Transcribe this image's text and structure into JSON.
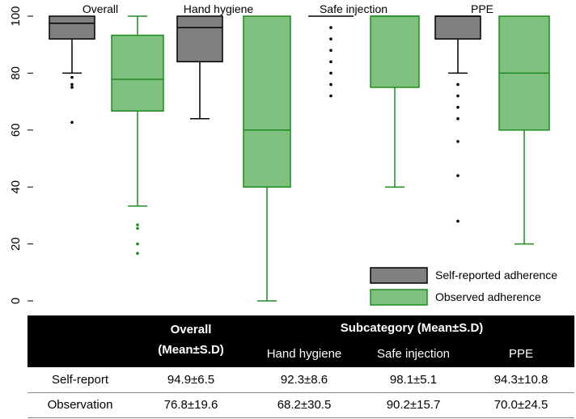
{
  "chart_data": {
    "type": "boxplot",
    "ylim": [
      0,
      100
    ],
    "yticks": [
      0,
      20,
      40,
      60,
      80,
      100
    ],
    "groups": [
      "Overall",
      "Hand hygiene",
      "Safe injection",
      "PPE"
    ],
    "series": [
      {
        "name": "Self-reported adherence",
        "color": "#808080"
      },
      {
        "name": "Observed adherence",
        "color": "#7fc27f"
      }
    ],
    "boxes": [
      {
        "group": "Overall",
        "series": "Self-reported adherence",
        "min": 80,
        "q1": 92,
        "median": 97.5,
        "q3": 100,
        "max": 100,
        "outliers": [
          78.5,
          76,
          75,
          62.7
        ]
      },
      {
        "group": "Overall",
        "series": "Observed adherence",
        "min": 33.3,
        "q1": 66.7,
        "median": 77.8,
        "q3": 93.3,
        "max": 100,
        "outliers": [
          26.7,
          25.5,
          20,
          16.7
        ]
      },
      {
        "group": "Hand hygiene",
        "series": "Self-reported adherence",
        "min": 64,
        "q1": 84,
        "median": 96,
        "q3": 100,
        "max": 100,
        "outliers": []
      },
      {
        "group": "Hand hygiene",
        "series": "Observed adherence",
        "min": 0,
        "q1": 40,
        "median": 60,
        "q3": 100,
        "max": 100,
        "outliers": []
      },
      {
        "group": "Safe injection",
        "series": "Self-reported adherence",
        "min": 100,
        "q1": 100,
        "median": 100,
        "q3": 100,
        "max": 100,
        "outliers": [
          96,
          92,
          88,
          84,
          80,
          76,
          72
        ]
      },
      {
        "group": "Safe injection",
        "series": "Observed adherence",
        "min": 40,
        "q1": 75,
        "median": 100,
        "q3": 100,
        "max": 100,
        "outliers": []
      },
      {
        "group": "PPE",
        "series": "Self-reported adherence",
        "min": 80,
        "q1": 92,
        "median": 100,
        "q3": 100,
        "max": 100,
        "outliers": [
          76,
          72,
          68,
          64,
          56,
          44,
          28
        ]
      },
      {
        "group": "PPE",
        "series": "Observed adherence",
        "min": 20,
        "q1": 60,
        "median": 80,
        "q3": 100,
        "max": 100,
        "outliers": []
      }
    ],
    "legend_position": "bottom-right"
  },
  "table": {
    "header_overall_1": "Overall",
    "header_overall_2": "(Mean±S.D)",
    "header_subcategory": "Subcategory (Mean±S.D)",
    "header_hand": "Hand hygiene",
    "header_injection": "Safe injection",
    "header_ppe": "PPE",
    "rows": [
      {
        "label": "Self-report",
        "overall": "94.9±6.5",
        "hand": "92.3±8.6",
        "injection": "98.1±5.1",
        "ppe": "94.3±10.8"
      },
      {
        "label": "Observation",
        "overall": "76.8±19.6",
        "hand": "68.2±30.5",
        "injection": "90.2±15.7",
        "ppe": "70.0±24.5"
      }
    ]
  }
}
